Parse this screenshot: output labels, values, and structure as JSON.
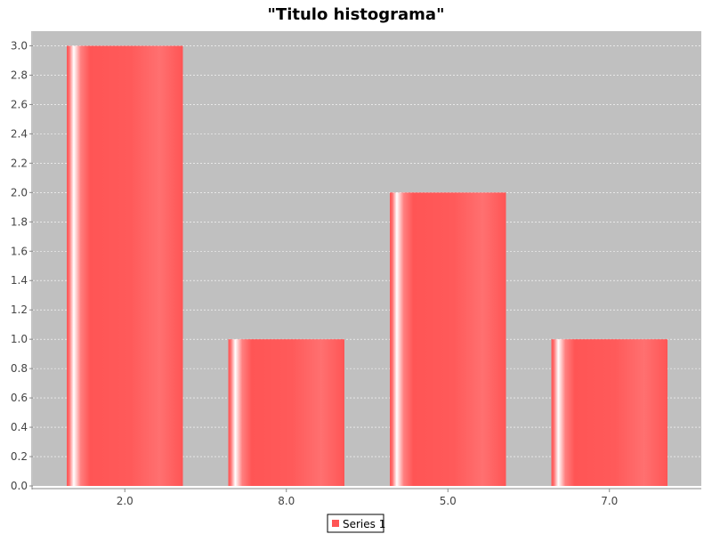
{
  "chart_data": {
    "type": "bar",
    "title": "\"Titulo histograma\"",
    "categories": [
      "2.0",
      "8.0",
      "5.0",
      "7.0"
    ],
    "series": [
      {
        "name": "Series 1",
        "values": [
          3.0,
          1.0,
          2.0,
          1.0
        ]
      }
    ],
    "ylim": [
      0,
      3.1
    ],
    "yticks": [
      "0.0",
      "0.2",
      "0.4",
      "0.6",
      "0.8",
      "1.0",
      "1.2",
      "1.4",
      "1.6",
      "1.8",
      "2.0",
      "2.2",
      "2.4",
      "2.6",
      "2.8",
      "3.0"
    ],
    "grid": true,
    "legend_position": "bottom-center",
    "colors": {
      "plot_background": "#c0c0c0",
      "bar": "#ff5555",
      "bar_highlight": "#ffffff",
      "gridline": "#ffffff",
      "axis": "#888888"
    }
  }
}
